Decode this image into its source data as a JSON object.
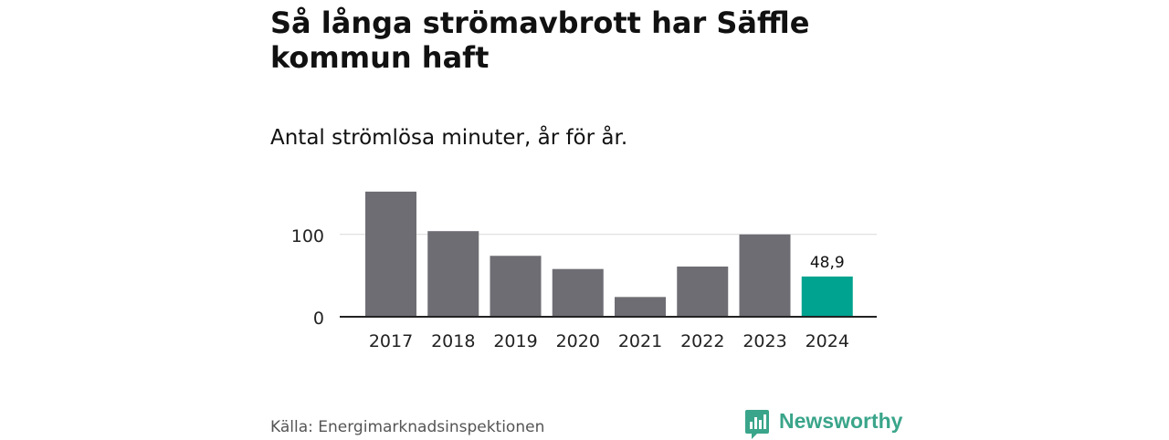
{
  "title": "Så långa strömavbrott har Säffle kommun haft",
  "subtitle": "Antal strömlösa minuter, år för år.",
  "source": "Källa: Energimarknadsinspektionen",
  "brand": {
    "name": "Newsworthy",
    "icon": "newsworthy-logo-icon"
  },
  "colors": {
    "bar": "#6e6d73",
    "highlight": "#00a38f",
    "grid": "#d9d9d9",
    "axis": "#222222",
    "brand": "#3aa58a"
  },
  "chart_data": {
    "type": "bar",
    "categories": [
      "2017",
      "2018",
      "2019",
      "2020",
      "2021",
      "2022",
      "2023",
      "2024"
    ],
    "values": [
      152,
      104,
      74,
      58,
      24,
      61,
      100,
      48.9
    ],
    "highlight_index": 7,
    "data_labels": [
      {
        "index": 7,
        "text": "48,9"
      }
    ],
    "yticks": [
      0,
      100
    ],
    "ytick_labels": [
      "0",
      "100"
    ],
    "ylim": [
      0,
      160
    ],
    "title": "Så långa strömavbrott har Säffle kommun haft",
    "subtitle": "Antal strömlösa minuter, år för år.",
    "xlabel": "",
    "ylabel": ""
  }
}
